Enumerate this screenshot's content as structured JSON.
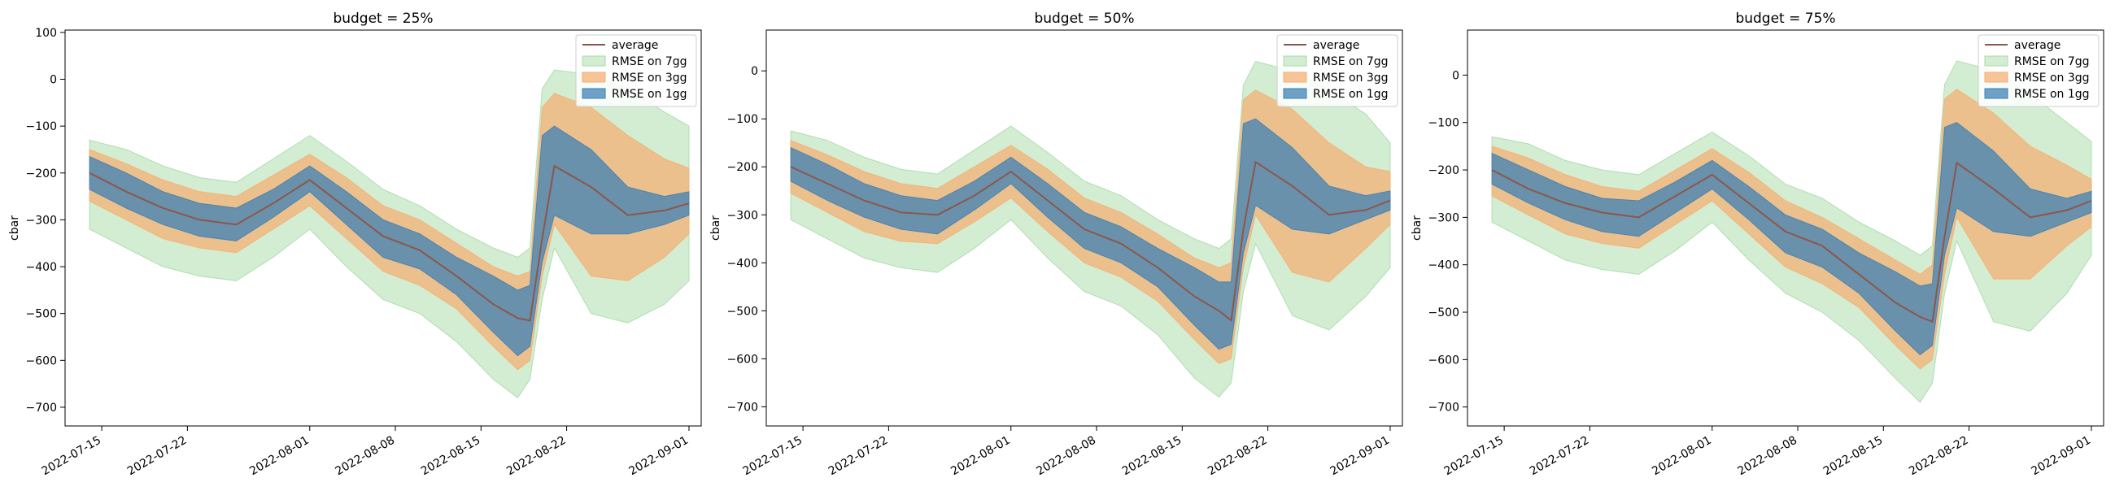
{
  "figure": {
    "panels_count": 3
  },
  "chart_data": [
    {
      "type": "area",
      "title": "budget = 25%",
      "xlabel": "",
      "ylabel": "cbar",
      "xlim": [
        "2022-07-12",
        "2022-09-02"
      ],
      "ylim": [
        -740,
        105
      ],
      "yticks": [
        100,
        0,
        -100,
        -200,
        -300,
        -400,
        -500,
        -600,
        -700
      ],
      "xticks": [
        "2022-07-15",
        "2022-07-22",
        "2022-08-01",
        "2022-08-08",
        "2022-08-15",
        "2022-08-22",
        "2022-09-01"
      ],
      "grid": false,
      "legend": {
        "placement": "top-right",
        "entries": [
          "average",
          "RMSE on 7gg",
          "RMSE on 3gg",
          "RMSE on 1gg"
        ]
      },
      "colors": {
        "average": "#8c564b",
        "band_7gg": "#a8dba8",
        "band_3gg": "#f4b074",
        "band_1gg": "#3f81b5"
      },
      "x": [
        "2022-07-14",
        "2022-07-17",
        "2022-07-20",
        "2022-07-23",
        "2022-07-26",
        "2022-07-29",
        "2022-08-01",
        "2022-08-04",
        "2022-08-07",
        "2022-08-10",
        "2022-08-13",
        "2022-08-16",
        "2022-08-18",
        "2022-08-19",
        "2022-08-20",
        "2022-08-21",
        "2022-08-24",
        "2022-08-27",
        "2022-08-30",
        "2022-09-01"
      ],
      "series": [
        {
          "name": "average",
          "values": [
            -200,
            -240,
            -275,
            -300,
            -310,
            -265,
            -215,
            -275,
            -335,
            -365,
            -420,
            -480,
            -510,
            -515,
            -340,
            -185,
            -230,
            -290,
            -280,
            -265
          ]
        },
        {
          "name": "RMSE on 7gg",
          "lower": [
            -320,
            -360,
            -400,
            -420,
            -430,
            -380,
            -320,
            -400,
            -470,
            -500,
            -560,
            -640,
            -680,
            -640,
            -470,
            -360,
            -500,
            -520,
            -480,
            -430
          ],
          "upper": [
            -130,
            -150,
            -185,
            -210,
            -220,
            -170,
            -120,
            -175,
            -235,
            -270,
            -320,
            -360,
            -380,
            -360,
            -20,
            20,
            10,
            -20,
            -70,
            -100
          ]
        },
        {
          "name": "RMSE on 3gg",
          "lower": [
            -260,
            -300,
            -340,
            -360,
            -370,
            -320,
            -270,
            -340,
            -410,
            -440,
            -490,
            -570,
            -620,
            -600,
            -420,
            -310,
            -420,
            -430,
            -380,
            -330
          ],
          "upper": [
            -150,
            -180,
            -215,
            -240,
            -250,
            -205,
            -160,
            -210,
            -270,
            -300,
            -350,
            -400,
            -420,
            -410,
            -60,
            -30,
            -60,
            -120,
            -170,
            -190
          ]
        },
        {
          "name": "RMSE on 1gg",
          "lower": [
            -235,
            -275,
            -310,
            -335,
            -345,
            -295,
            -240,
            -310,
            -380,
            -405,
            -460,
            -540,
            -590,
            -570,
            -390,
            -290,
            -330,
            -330,
            -310,
            -290
          ],
          "upper": [
            -165,
            -200,
            -240,
            -265,
            -275,
            -235,
            -185,
            -240,
            -300,
            -330,
            -380,
            -420,
            -450,
            -440,
            -120,
            -100,
            -150,
            -230,
            -250,
            -240
          ]
        }
      ]
    },
    {
      "type": "area",
      "title": "budget = 50%",
      "xlabel": "",
      "ylabel": "cbar",
      "xlim": [
        "2022-07-12",
        "2022-09-02"
      ],
      "ylim": [
        -740,
        85
      ],
      "yticks": [
        0,
        -100,
        -200,
        -300,
        -400,
        -500,
        -600,
        -700
      ],
      "xticks": [
        "2022-07-15",
        "2022-07-22",
        "2022-08-01",
        "2022-08-08",
        "2022-08-15",
        "2022-08-22",
        "2022-09-01"
      ],
      "grid": false,
      "legend": {
        "placement": "top-right",
        "entries": [
          "average",
          "RMSE on 7gg",
          "RMSE on 3gg",
          "RMSE on 1gg"
        ]
      },
      "colors": {
        "average": "#8c564b",
        "band_7gg": "#a8dba8",
        "band_3gg": "#f4b074",
        "band_1gg": "#3f81b5"
      },
      "x": [
        "2022-07-14",
        "2022-07-17",
        "2022-07-20",
        "2022-07-23",
        "2022-07-26",
        "2022-07-29",
        "2022-08-01",
        "2022-08-04",
        "2022-08-07",
        "2022-08-10",
        "2022-08-13",
        "2022-08-16",
        "2022-08-18",
        "2022-08-19",
        "2022-08-20",
        "2022-08-21",
        "2022-08-24",
        "2022-08-27",
        "2022-08-30",
        "2022-09-01"
      ],
      "series": [
        {
          "name": "average",
          "values": [
            -200,
            -235,
            -270,
            -295,
            -300,
            -260,
            -210,
            -270,
            -330,
            -360,
            -410,
            -470,
            -500,
            -520,
            -330,
            -190,
            -240,
            -300,
            -290,
            -270
          ]
        },
        {
          "name": "RMSE on 7gg",
          "lower": [
            -310,
            -350,
            -390,
            -410,
            -420,
            -370,
            -310,
            -390,
            -460,
            -490,
            -550,
            -640,
            -680,
            -650,
            -460,
            -360,
            -510,
            -540,
            -470,
            -410
          ],
          "upper": [
            -125,
            -145,
            -180,
            -205,
            -215,
            -165,
            -115,
            -170,
            -230,
            -260,
            -310,
            -350,
            -370,
            -350,
            -30,
            20,
            0,
            -40,
            -90,
            -150
          ]
        },
        {
          "name": "RMSE on 3gg",
          "lower": [
            -255,
            -295,
            -335,
            -355,
            -360,
            -315,
            -265,
            -335,
            -400,
            -430,
            -480,
            -560,
            -610,
            -600,
            -410,
            -300,
            -420,
            -440,
            -370,
            -320
          ],
          "upper": [
            -145,
            -175,
            -210,
            -235,
            -245,
            -200,
            -155,
            -205,
            -265,
            -295,
            -340,
            -390,
            -410,
            -400,
            -60,
            -40,
            -80,
            -150,
            -200,
            -210
          ]
        },
        {
          "name": "RMSE on 1gg",
          "lower": [
            -230,
            -270,
            -305,
            -330,
            -340,
            -290,
            -235,
            -305,
            -370,
            -400,
            -450,
            -530,
            -580,
            -570,
            -380,
            -280,
            -330,
            -340,
            -310,
            -290
          ],
          "upper": [
            -160,
            -195,
            -235,
            -260,
            -270,
            -230,
            -180,
            -235,
            -295,
            -325,
            -370,
            -410,
            -440,
            -440,
            -110,
            -100,
            -160,
            -240,
            -260,
            -250
          ]
        }
      ]
    },
    {
      "type": "area",
      "title": "budget = 75%",
      "xlabel": "",
      "ylabel": "cbar",
      "xlim": [
        "2022-07-12",
        "2022-09-02"
      ],
      "ylim": [
        -740,
        95
      ],
      "yticks": [
        0,
        -100,
        -200,
        -300,
        -400,
        -500,
        -600,
        -700
      ],
      "xticks": [
        "2022-07-15",
        "2022-07-22",
        "2022-08-01",
        "2022-08-08",
        "2022-08-15",
        "2022-08-22",
        "2022-09-01"
      ],
      "grid": false,
      "legend": {
        "placement": "top-right",
        "entries": [
          "average",
          "RMSE on 7gg",
          "RMSE on 3gg",
          "RMSE on 1gg"
        ]
      },
      "colors": {
        "average": "#8c564b",
        "band_7gg": "#a8dba8",
        "band_3gg": "#f4b074",
        "band_1gg": "#3f81b5"
      },
      "x": [
        "2022-07-14",
        "2022-07-17",
        "2022-07-20",
        "2022-07-23",
        "2022-07-26",
        "2022-07-29",
        "2022-08-01",
        "2022-08-04",
        "2022-08-07",
        "2022-08-10",
        "2022-08-13",
        "2022-08-16",
        "2022-08-18",
        "2022-08-19",
        "2022-08-20",
        "2022-08-21",
        "2022-08-24",
        "2022-08-27",
        "2022-08-30",
        "2022-09-01"
      ],
      "series": [
        {
          "name": "average",
          "values": [
            -200,
            -240,
            -270,
            -290,
            -300,
            -255,
            -210,
            -270,
            -330,
            -360,
            -420,
            -480,
            -510,
            -520,
            -340,
            -185,
            -240,
            -300,
            -285,
            -265
          ]
        },
        {
          "name": "RMSE on 7gg",
          "lower": [
            -310,
            -350,
            -390,
            -410,
            -420,
            -370,
            -310,
            -390,
            -460,
            -500,
            -560,
            -640,
            -690,
            -650,
            -460,
            -350,
            -520,
            -540,
            -460,
            -380
          ],
          "upper": [
            -130,
            -145,
            -180,
            -200,
            -210,
            -165,
            -120,
            -170,
            -230,
            -260,
            -310,
            -350,
            -380,
            -360,
            -20,
            30,
            10,
            -40,
            -100,
            -140
          ]
        },
        {
          "name": "RMSE on 3gg",
          "lower": [
            -255,
            -295,
            -335,
            -355,
            -365,
            -315,
            -265,
            -335,
            -405,
            -440,
            -490,
            -570,
            -620,
            -600,
            -420,
            -300,
            -430,
            -430,
            -360,
            -320
          ],
          "upper": [
            -150,
            -175,
            -210,
            -235,
            -245,
            -200,
            -155,
            -205,
            -265,
            -300,
            -345,
            -390,
            -420,
            -400,
            -50,
            -30,
            -80,
            -150,
            -190,
            -220
          ]
        },
        {
          "name": "RMSE on 1gg",
          "lower": [
            -230,
            -270,
            -305,
            -330,
            -340,
            -290,
            -240,
            -305,
            -375,
            -405,
            -460,
            -540,
            -590,
            -570,
            -380,
            -280,
            -330,
            -340,
            -310,
            -290
          ],
          "upper": [
            -165,
            -200,
            -235,
            -260,
            -265,
            -225,
            -180,
            -235,
            -295,
            -325,
            -375,
            -415,
            -445,
            -440,
            -110,
            -100,
            -160,
            -240,
            -260,
            -245
          ]
        }
      ]
    }
  ]
}
